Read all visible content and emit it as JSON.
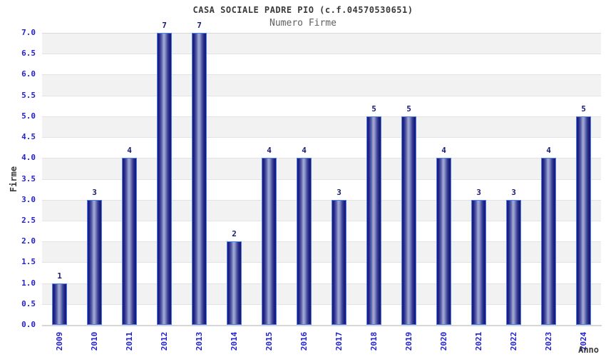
{
  "chart": {
    "title": "CASA SOCIALE PADRE PIO (c.f.04570530651)",
    "subtitle": "Numero Firme",
    "xlabel": "Anno",
    "ylabel": "Firme"
  },
  "chart_data": {
    "type": "bar",
    "title": "CASA SOCIALE PADRE PIO (c.f.04570530651)",
    "subtitle": "Numero Firme",
    "xlabel": "Anno",
    "ylabel": "Firme",
    "categories": [
      "2009",
      "2010",
      "2011",
      "2012",
      "2013",
      "2014",
      "2015",
      "2016",
      "2017",
      "2018",
      "2019",
      "2020",
      "2021",
      "2022",
      "2023",
      "2024"
    ],
    "values": [
      1,
      3,
      4,
      7,
      7,
      2,
      4,
      4,
      3,
      5,
      5,
      4,
      3,
      3,
      4,
      5
    ],
    "ylim": [
      0,
      7
    ],
    "ytick_step": 0.5,
    "ytick_labels": [
      "0.0",
      "0.5",
      "1.0",
      "1.5",
      "2.0",
      "2.5",
      "3.0",
      "3.5",
      "4.0",
      "4.5",
      "5.0",
      "5.5",
      "6.0",
      "6.5",
      "7.0"
    ],
    "grid": true,
    "legend": "none",
    "colors": {
      "band_gray": "#f2f2f2",
      "band_white": "#ffffff",
      "gridline": "#e3e3e3",
      "plot_border": "#d9d9d9",
      "tick_label": "#2222cc",
      "value_label": "#191970",
      "bar_border": "#4a7df0",
      "bar_dark": "#1a1a75",
      "bar_light": "#a2aad6",
      "title": "#3a3a3a",
      "subtitle": "#606060"
    }
  }
}
